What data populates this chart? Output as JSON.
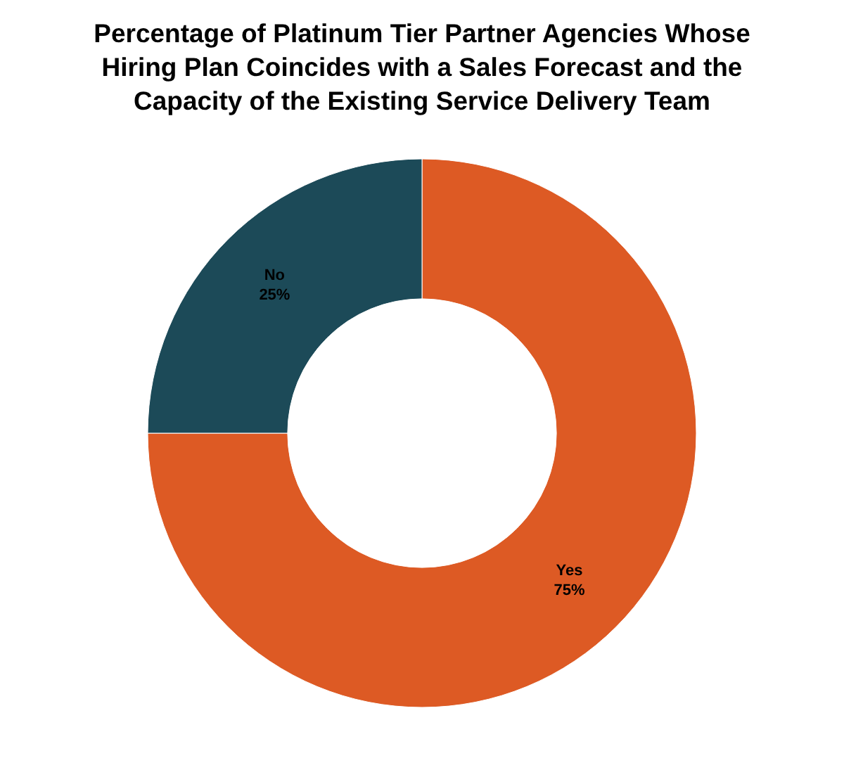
{
  "chart_data": {
    "type": "donut",
    "title": "Percentage of Platinum Tier Partner Agencies Whose Hiring Plan Coincides with a Sales Forecast and the Capacity of the Existing Service Delivery Team",
    "categories": [
      "Yes",
      "No"
    ],
    "values": [
      75,
      25
    ],
    "colors": [
      "#dd5a24",
      "#1c4a58"
    ],
    "value_labels": [
      "75%",
      "25%"
    ]
  }
}
